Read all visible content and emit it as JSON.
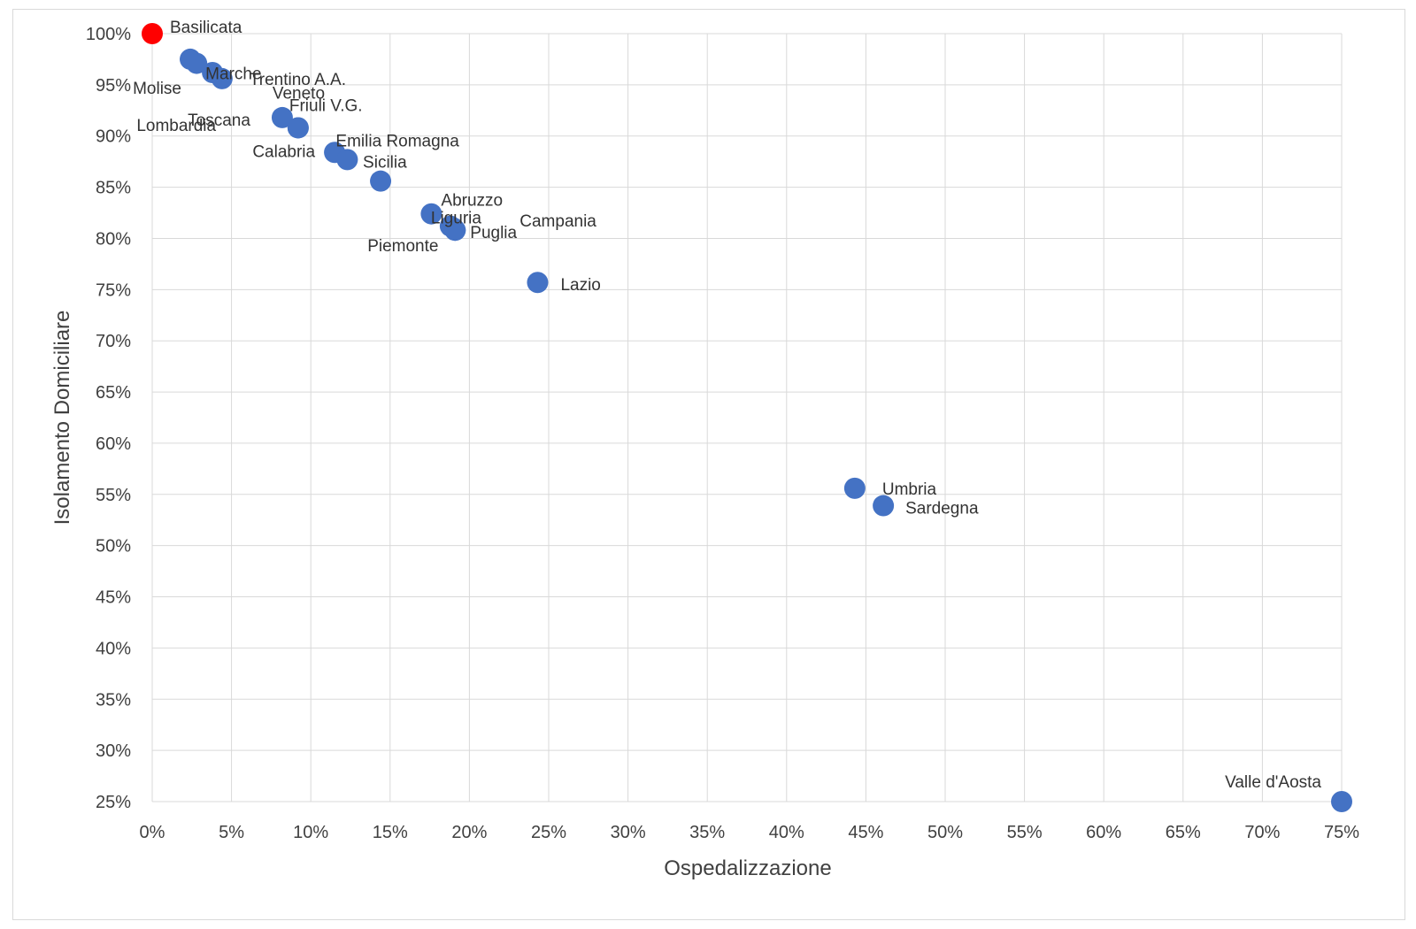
{
  "chart_data": {
    "type": "scatter",
    "title": "",
    "xlabel": "Ospedalizzazione",
    "ylabel": "Isolamento Domiciliare",
    "xlim": [
      0,
      0.75
    ],
    "ylim": [
      0.25,
      1.0
    ],
    "x_ticks": [
      "0%",
      "5%",
      "10%",
      "15%",
      "20%",
      "25%",
      "30%",
      "35%",
      "40%",
      "45%",
      "50%",
      "55%",
      "60%",
      "65%",
      "70%",
      "75%"
    ],
    "y_ticks": [
      "25%",
      "30%",
      "35%",
      "40%",
      "45%",
      "50%",
      "55%",
      "60%",
      "65%",
      "70%",
      "75%",
      "80%",
      "85%",
      "90%",
      "95%",
      "100%"
    ],
    "grid": true,
    "legend": "none",
    "colors": {
      "default": "#4472c4",
      "highlight": "#ff0000"
    },
    "points": [
      {
        "label": "Basilicata",
        "x": 0.0,
        "y": 1.0,
        "highlight": true
      },
      {
        "label": "Molise",
        "x": 0.024,
        "y": 0.975
      },
      {
        "label": "Marche",
        "x": 0.028,
        "y": 0.971
      },
      {
        "label": "Lombardia",
        "x": 0.038,
        "y": 0.962
      },
      {
        "label": "Trentino A.A.",
        "x": 0.044,
        "y": 0.956
      },
      {
        "label": "Toscana",
        "x": 0.082,
        "y": 0.918
      },
      {
        "label": "Veneto",
        "x": 0.092,
        "y": 0.908
      },
      {
        "label": "Friuli V.G.",
        "x": 0.092,
        "y": 0.908
      },
      {
        "label": "Calabria",
        "x": 0.115,
        "y": 0.884
      },
      {
        "label": "Emilia Romagna",
        "x": 0.123,
        "y": 0.877
      },
      {
        "label": "Sicilia",
        "x": 0.144,
        "y": 0.856
      },
      {
        "label": "Abruzzo",
        "x": 0.176,
        "y": 0.824
      },
      {
        "label": "Liguria",
        "x": 0.188,
        "y": 0.812
      },
      {
        "label": "Piemonte",
        "x": 0.19,
        "y": 0.81
      },
      {
        "label": "Puglia",
        "x": 0.191,
        "y": 0.808
      },
      {
        "label": "Campania",
        "x": 0.191,
        "y": 0.808
      },
      {
        "label": "Lazio",
        "x": 0.243,
        "y": 0.757
      },
      {
        "label": "Umbria",
        "x": 0.443,
        "y": 0.556
      },
      {
        "label": "Sardegna",
        "x": 0.461,
        "y": 0.539
      },
      {
        "label": "Valle d'Aosta",
        "x": 0.75,
        "y": 0.25
      }
    ]
  }
}
